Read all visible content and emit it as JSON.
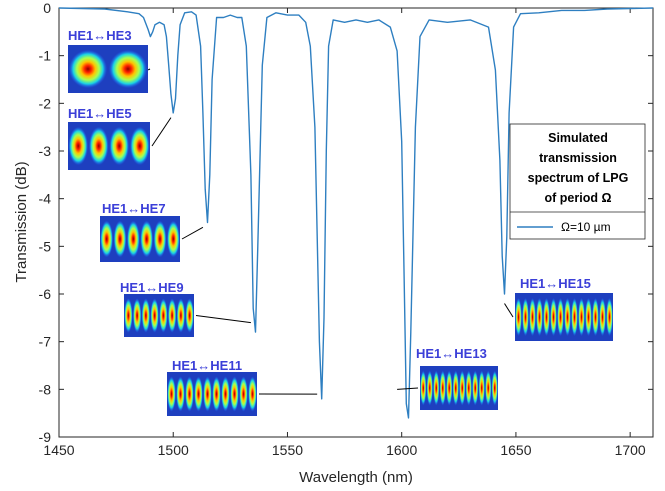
{
  "chart_data": {
    "type": "line",
    "xlabel": "Wavelength (nm)",
    "ylabel": "Transmission (dB)",
    "xlim": [
      1450,
      1710
    ],
    "ylim": [
      -9,
      0
    ],
    "x_ticks": [
      1450,
      1500,
      1550,
      1600,
      1650,
      1700
    ],
    "x_tick_labels": [
      "1450",
      "1500",
      "1550",
      "1600",
      "1650",
      "1700"
    ],
    "y_ticks": [
      0,
      -1,
      -2,
      -3,
      -4,
      -5,
      -6,
      -7,
      -8,
      -9
    ],
    "y_tick_labels": [
      "0",
      "-1",
      "-2",
      "-3",
      "-4",
      "-5",
      "-6",
      "-7",
      "-8",
      "-9"
    ],
    "grid": false,
    "legend": {
      "placement": "right",
      "title_lines": [
        "Simulated",
        "transmission",
        "spectrum of LPG",
        "of period Ω"
      ],
      "entry": "Ω=10 µm"
    },
    "series": [
      {
        "name": "Ω=10 µm",
        "color": "#2e7fc1",
        "x": [
          1450,
          1470,
          1480,
          1485,
          1487,
          1489,
          1490,
          1491,
          1492,
          1494,
          1496,
          1497,
          1498,
          1499,
          1500,
          1501,
          1502,
          1503,
          1505,
          1508,
          1510,
          1512,
          1513,
          1514,
          1515,
          1516,
          1517,
          1519,
          1522,
          1525,
          1528,
          1530,
          1532,
          1534,
          1535,
          1536,
          1537,
          1539,
          1541,
          1545,
          1550,
          1555,
          1558,
          1560,
          1562,
          1563,
          1564,
          1565,
          1566,
          1567,
          1568,
          1570,
          1575,
          1580,
          1585,
          1590,
          1595,
          1598,
          1600,
          1601,
          1602,
          1603,
          1604,
          1606,
          1608,
          1612,
          1620,
          1630,
          1638,
          1641,
          1643,
          1644,
          1645,
          1646,
          1647,
          1649,
          1652,
          1660,
          1670,
          1680,
          1690,
          1700,
          1710
        ],
        "y": [
          0,
          -0.02,
          -0.08,
          -0.12,
          -0.2,
          -0.45,
          -0.6,
          -0.5,
          -0.35,
          -0.3,
          -0.35,
          -0.6,
          -1.2,
          -1.8,
          -2.2,
          -1.9,
          -1.0,
          -0.35,
          -0.1,
          -0.08,
          -0.15,
          -0.8,
          -2.2,
          -3.8,
          -4.5,
          -3.5,
          -1.5,
          -0.2,
          -0.2,
          -0.15,
          -0.2,
          -0.2,
          -0.8,
          -3.5,
          -6.3,
          -6.8,
          -5.0,
          -1.2,
          -0.2,
          -0.1,
          -0.15,
          -0.15,
          -0.3,
          -0.8,
          -2.5,
          -4.8,
          -7.0,
          -8.2,
          -6.5,
          -3.0,
          -0.8,
          -0.25,
          -0.3,
          -0.25,
          -0.3,
          -0.25,
          -0.4,
          -0.9,
          -2.8,
          -5.5,
          -8.3,
          -8.6,
          -6.8,
          -2.5,
          -0.6,
          -0.25,
          -0.3,
          -0.25,
          -0.4,
          -1.3,
          -3.2,
          -5.2,
          -6.0,
          -4.8,
          -2.2,
          -0.4,
          -0.12,
          -0.1,
          -0.05,
          -0.05,
          -0.02,
          -0.01,
          0
        ]
      }
    ],
    "annotations": [
      {
        "label": "HE1↔HE3",
        "x": 1489,
        "y": -1.3,
        "lobes": 2
      },
      {
        "label": "HE1↔HE5",
        "x": 1499,
        "y": -2.3,
        "lobes": 4
      },
      {
        "label": "HE1↔HE7",
        "x": 1513,
        "y": -4.6,
        "lobes": 6
      },
      {
        "label": "HE1↔HE9",
        "x": 1534,
        "y": -6.6,
        "lobes": 8
      },
      {
        "label": "HE1↔HE11",
        "x": 1563,
        "y": -8.1,
        "lobes": 10
      },
      {
        "label": "HE1↔HE13",
        "x": 1598,
        "y": -8.0,
        "lobes": 12
      },
      {
        "label": "HE1↔HE15",
        "x": 1645,
        "y": -6.2,
        "lobes": 14
      }
    ]
  }
}
